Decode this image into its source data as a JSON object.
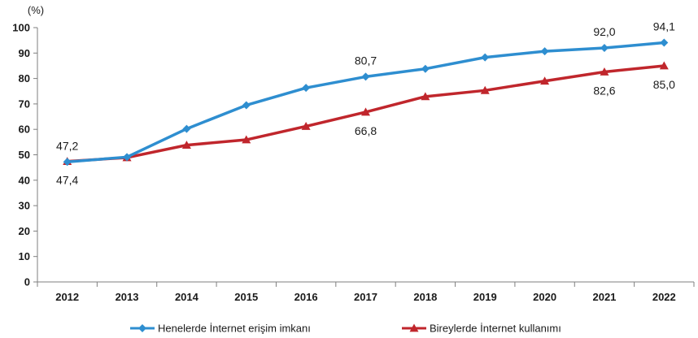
{
  "chart_data": {
    "type": "line",
    "ylabel": "(%)",
    "ylim": [
      0,
      100
    ],
    "yticks": [
      0,
      10,
      20,
      30,
      40,
      50,
      60,
      70,
      80,
      90,
      100
    ],
    "categories": [
      "2012",
      "2013",
      "2014",
      "2015",
      "2016",
      "2017",
      "2018",
      "2019",
      "2020",
      "2021",
      "2022"
    ],
    "legend_position": "bottom",
    "grid": false,
    "series": [
      {
        "name": "Henelerde İnternet erişim imkanı",
        "color": "#2E8ED0",
        "marker": "diamond",
        "values": [
          47.2,
          49.1,
          60.2,
          69.5,
          76.3,
          80.7,
          83.8,
          88.3,
          90.7,
          92.0,
          94.1
        ]
      },
      {
        "name": "Bireylerde İnternet kullanımı",
        "color": "#C0262C",
        "marker": "triangle",
        "values": [
          47.4,
          48.9,
          53.8,
          55.9,
          61.2,
          66.8,
          72.9,
          75.3,
          79.0,
          82.6,
          85.0
        ]
      }
    ],
    "data_labels": [
      {
        "series": 0,
        "index": 0,
        "text": "47,2",
        "position": "above"
      },
      {
        "series": 1,
        "index": 0,
        "text": "47,4",
        "position": "below"
      },
      {
        "series": 0,
        "index": 5,
        "text": "80,7",
        "position": "above"
      },
      {
        "series": 1,
        "index": 5,
        "text": "66,8",
        "position": "below"
      },
      {
        "series": 0,
        "index": 9,
        "text": "92,0",
        "position": "above"
      },
      {
        "series": 1,
        "index": 9,
        "text": "82,6",
        "position": "below"
      },
      {
        "series": 0,
        "index": 10,
        "text": "94,1",
        "position": "above"
      },
      {
        "series": 1,
        "index": 10,
        "text": "85,0",
        "position": "below"
      }
    ]
  }
}
